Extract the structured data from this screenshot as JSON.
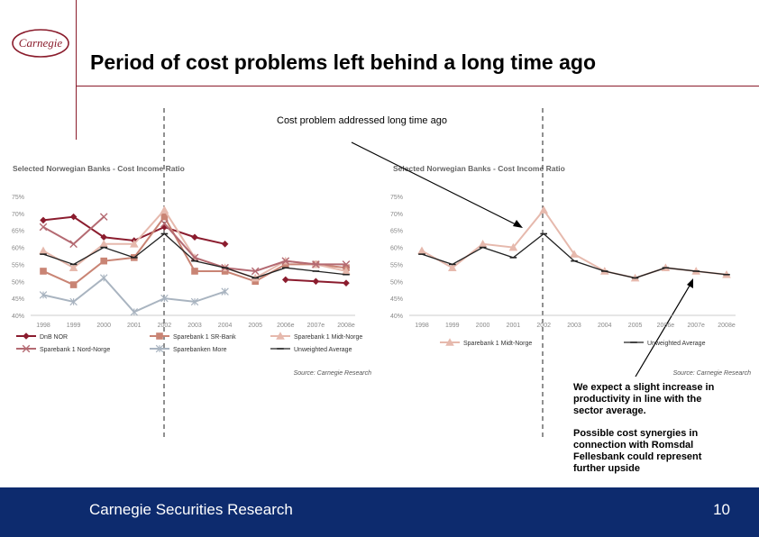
{
  "header": {
    "logo_text": "Carnegie",
    "title": "Period of cost problems left behind a long time ago"
  },
  "annotations": {
    "left": "Cost problem addressed long time ago",
    "right_1": "We expect a slight increase in productivity in line with the sector average.",
    "right_2": "Possible cost synergies in connection with Romsdal Fellesbank could represent further upside"
  },
  "footer": {
    "left": "Carnegie Securities Research",
    "page": "10"
  },
  "colors": {
    "brand": "#8a1c2c",
    "footer_bg": "#0d2b6e",
    "dnb": "#8b1c2e",
    "sr": "#c98474",
    "midt": "#e6b9ad",
    "nord": "#b46a72",
    "more": "#a9b4c0",
    "avg": "#222222"
  },
  "chart_data": [
    {
      "type": "line",
      "title": "Selected Norwegian Banks - Cost Income Ratio",
      "source": "Source: Carnegie Research",
      "categories": [
        "1998",
        "1999",
        "2000",
        "2001",
        "2002",
        "2003",
        "2004",
        "2005",
        "2006e",
        "2007e",
        "2008e"
      ],
      "ylim": [
        40,
        75
      ],
      "yticks": [
        "40%",
        "45%",
        "50%",
        "55%",
        "60%",
        "65%",
        "70%",
        "75%"
      ],
      "series": [
        {
          "name": "DnB NOR",
          "color": "#8b1c2e",
          "marker": "diamond",
          "values": [
            68,
            69,
            63,
            62,
            66,
            63,
            61,
            null,
            50.5,
            50,
            49.5
          ]
        },
        {
          "name": "Sparebank 1 SR-Bank",
          "color": "#c98474",
          "marker": "square",
          "values": [
            53,
            49,
            56,
            57,
            69,
            53,
            53,
            50,
            55,
            55,
            54
          ]
        },
        {
          "name": "Sparebank 1 Midt-Norge",
          "color": "#e6b9ad",
          "marker": "triangle",
          "values": [
            59,
            54,
            61,
            61,
            71,
            57,
            54,
            51,
            56,
            55,
            53
          ]
        },
        {
          "name": "Sparebank 1 Nord-Norge",
          "color": "#b46a72",
          "marker": "x",
          "values": [
            66,
            61,
            69,
            null,
            67,
            57,
            54,
            53,
            56,
            55,
            55
          ]
        },
        {
          "name": "Sparebanken More",
          "color": "#a9b4c0",
          "marker": "star",
          "values": [
            46,
            44,
            51,
            41,
            45,
            44,
            47,
            null,
            null,
            null,
            null
          ]
        },
        {
          "name": "Unweighted Average",
          "color": "#222222",
          "marker": "dash",
          "values": [
            58,
            55,
            60,
            57,
            64,
            56,
            54,
            51,
            54,
            53,
            52
          ]
        }
      ]
    },
    {
      "type": "line",
      "title": "Selected Norwegian Banks - Cost Income Ratio",
      "source": "Source: Carnegie Research",
      "categories": [
        "1998",
        "1999",
        "2000",
        "2001",
        "2002",
        "2003",
        "2004",
        "2005",
        "2006e",
        "2007e",
        "2008e"
      ],
      "ylim": [
        40,
        75
      ],
      "yticks": [
        "40%",
        "45%",
        "50%",
        "55%",
        "60%",
        "65%",
        "70%",
        "75%"
      ],
      "series": [
        {
          "name": "Sparebank 1 Midt-Norge",
          "color": "#e6b9ad",
          "marker": "triangle",
          "values": [
            59,
            54,
            61,
            60,
            71,
            58,
            53,
            51,
            54,
            53,
            52
          ]
        },
        {
          "name": "Unweighted Average",
          "color": "#222222",
          "marker": "dash",
          "values": [
            58,
            55,
            60,
            57,
            64,
            56,
            53,
            51,
            54,
            53,
            52
          ]
        }
      ]
    }
  ]
}
